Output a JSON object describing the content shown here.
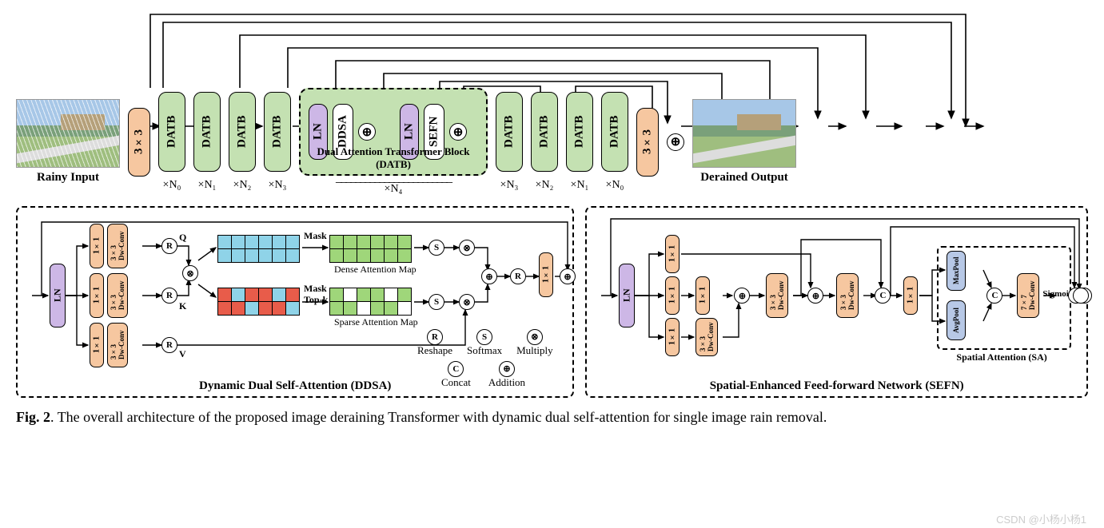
{
  "top": {
    "input_label": "Rainy Input",
    "output_label": "Derained Output",
    "conv_label": "3×3",
    "datb_label": "DATB",
    "stage_labels": [
      "×N₀",
      "×N₁",
      "×N₂",
      "×N₃",
      "×N₄",
      "×N₃",
      "×N₂",
      "×N₁",
      "×N₀"
    ],
    "datb_open": {
      "ln": "LN",
      "ddsa": "DDSA",
      "sefn": "SEFN",
      "caption": "Dual Attention Transformer Block (DATB)"
    },
    "colors": {
      "conv": "#f6c7a0",
      "datb": "#c4e1b2",
      "ln": "#cdb7e6"
    }
  },
  "ddsa": {
    "title": "Dynamic Dual Self-Attention (DDSA)",
    "ln": "LN",
    "branch_blocks": {
      "one": "1×1",
      "dw": "3×3\nDw-Conv"
    },
    "qkv": {
      "q": "Q",
      "k": "K",
      "v": "V"
    },
    "mask": "Mask",
    "topk": "Top-k",
    "dense_label": "Dense Attention Map",
    "sparse_label": "Sparse Attention Map",
    "out_conv": "1×1",
    "legend": {
      "r": "Reshape",
      "s": "Softmax",
      "x": "Multiply",
      "c": "Concat",
      "p": "Addition"
    },
    "dense_grid": {
      "rows": 2,
      "cols": 6,
      "colors": [
        [
          "cy",
          "cy",
          "cy",
          "cy",
          "cy",
          "cy"
        ],
        [
          "cy",
          "cy",
          "cy",
          "cy",
          "cy",
          "cy"
        ]
      ]
    },
    "dense_mask_grid": {
      "rows": 2,
      "cols": 6,
      "colors": [
        [
          "gn",
          "gn",
          "gn",
          "gn",
          "gn",
          "gn"
        ],
        [
          "gn",
          "gn",
          "gn",
          "gn",
          "gn",
          "gn"
        ]
      ]
    },
    "sparse_grid": {
      "rows": 2,
      "cols": 6,
      "colors": [
        [
          "rd",
          "cy",
          "rd",
          "rd",
          "cy",
          "rd"
        ],
        [
          "rd",
          "rd",
          "cy",
          "rd",
          "rd",
          "cy"
        ]
      ]
    },
    "sparse_mask_grid": {
      "rows": 2,
      "cols": 6,
      "colors": [
        [
          "gn",
          "wt",
          "gn",
          "gn",
          "wt",
          "gn"
        ],
        [
          "gn",
          "gn",
          "wt",
          "gn",
          "gn",
          "wt"
        ]
      ]
    },
    "palette": {
      "cy": "#8fd3e8",
      "rd": "#e85c4a",
      "gn": "#9fd67a",
      "wt": "#ffffff"
    }
  },
  "sefn": {
    "title": "Spatial-Enhanced Feed-forward Network (SEFN)",
    "ln": "LN",
    "one": "1×1",
    "dw3": "3×3\nDw-Conv",
    "dw7": "7×7\nDw-Conv",
    "max": "MaxPool",
    "avg": "AvgPool",
    "sig": "Sigmoid",
    "sa_caption": "Spatial Attention (SA)"
  },
  "caption": "Fig. 2. The overall architecture of the proposed image deraining Transformer with dynamic dual self-attention for single image rain removal.",
  "watermark": "CSDN @小杨小杨1"
}
